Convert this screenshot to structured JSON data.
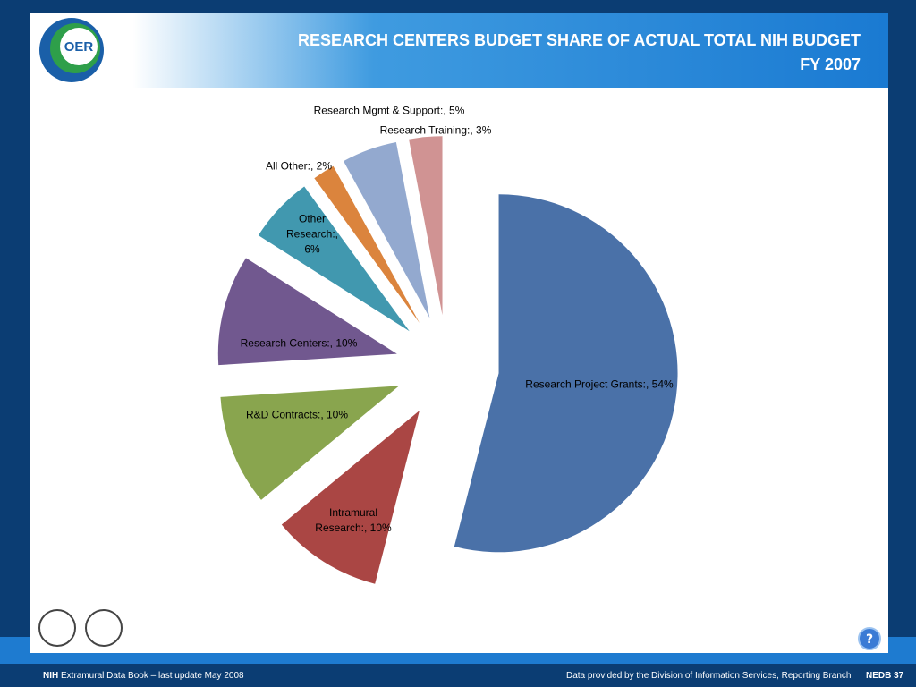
{
  "slide": {
    "logo_text": "OER",
    "footer_left_bold": "NIH",
    "footer_left": "Extramural Data Book – last update May 2008",
    "footer_right": "Data provided by the Division of Information Services, Reporting Branch",
    "page_number": "NEDB 37",
    "help": "?"
  },
  "chart_data": {
    "type": "pie",
    "title": "RESEARCH CENTERS BUDGET SHARE OF ACTUAL TOTAL NIH  BUDGET",
    "subtitle": "FY 2007",
    "values": [
      54,
      10,
      10,
      10,
      6,
      2,
      5,
      3
    ],
    "value_labels": [
      "Research Project Grants:, 54%",
      "Intramural Research:, 10%",
      "R&D Contracts:, 10%",
      "Research Centers:, 10%",
      "Other Research:, 6%",
      "All Other:, 2%",
      "Research Mgmt & Support:, 5%",
      "Research Training:, 3%"
    ],
    "colors": [
      "#4a71a8",
      "#aa4644",
      "#89a54e",
      "#71588f",
      "#4198af",
      "#db843d",
      "#93a9cf",
      "#d09393"
    ]
  }
}
